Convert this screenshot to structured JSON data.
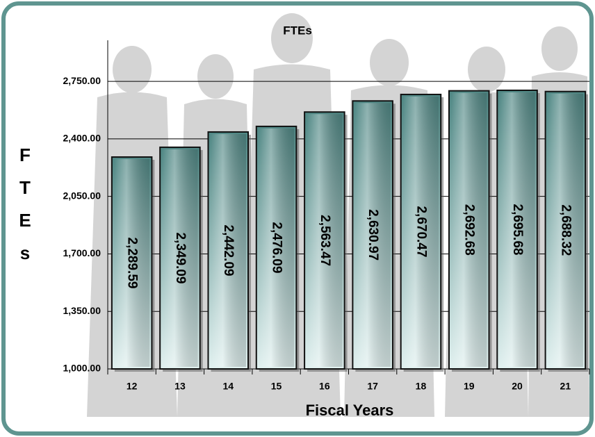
{
  "chart_data": {
    "type": "bar",
    "title": "FTEs",
    "x_label": "Fiscal Years",
    "y_label": "FTEs",
    "categories": [
      "12",
      "13",
      "14",
      "15",
      "16",
      "17",
      "18",
      "19",
      "20",
      "21"
    ],
    "values": [
      2289.59,
      2349.09,
      2442.09,
      2476.09,
      2563.47,
      2630.97,
      2670.47,
      2692.68,
      2695.68,
      2688.32
    ],
    "value_labels": [
      "2,289.59",
      "2,349.09",
      "2,442.09",
      "2,476.09",
      "2,563.47",
      "2,630.97",
      "2,670.47",
      "2,692.68",
      "2,695.68",
      "2,688.32"
    ],
    "color": "#5f9b98",
    "ylim": [
      1000,
      3000
    ],
    "yticks": [
      {
        "value": 1000,
        "label": "1,000.00"
      },
      {
        "value": 1350,
        "label": "1,350.00"
      },
      {
        "value": 1700,
        "label": "1,700.00"
      },
      {
        "value": 2050,
        "label": "2,050.00"
      },
      {
        "value": 2400,
        "label": "2,400.00"
      },
      {
        "value": 2750,
        "label": "2,750.00"
      }
    ],
    "grid": true
  }
}
